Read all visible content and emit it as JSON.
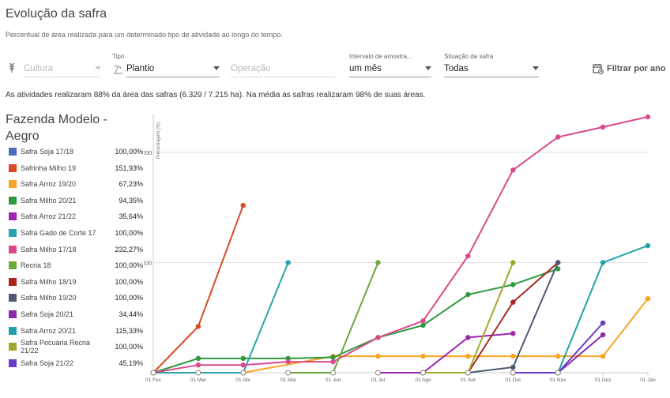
{
  "header": {
    "title": "Evolução da safra",
    "subtitle": "Percentual de área realizada para um determinado tipo de atividade ao longo do tempo."
  },
  "filters": {
    "cultura": {
      "placeholder": "Cultura"
    },
    "tipo": {
      "label": "Tipo",
      "value": "Plantio"
    },
    "operacao": {
      "placeholder": "Operação"
    },
    "intervalo": {
      "label": "Intervalo de amostra...",
      "value": "um mês"
    },
    "situacao": {
      "label": "Situação da safra",
      "value": "Todas"
    },
    "filter_button": "Filtrar por ano"
  },
  "summary": "As atividades realizaram 88% da área das safras (6.329 / 7.215 ha). Na média as safras realizaram 98% de suas áreas.",
  "farm": {
    "name": "Fazenda Modelo - Aegro"
  },
  "chart_data": {
    "type": "line",
    "ylabel": "Porcentagem (%)",
    "yticks": [
      100,
      200
    ],
    "ylim": [
      0,
      232.27
    ],
    "categories": [
      "01 Fev",
      "01 Mar",
      "01 Abr",
      "01 Mai",
      "01 Jun",
      "01 Jul",
      "01 Ago",
      "01 Set",
      "01 Out",
      "01 Nov",
      "01 Dez",
      "01 Jan"
    ],
    "series": [
      {
        "name": "Safra Soja 17/18",
        "total": "100,00%",
        "color": "#4a6fbf",
        "points": []
      },
      {
        "name": "Safrinha Milho 19",
        "total": "151,93%",
        "color": "#d84a2a",
        "points": [
          [
            0,
            0
          ],
          [
            1,
            42
          ],
          [
            2,
            151.93
          ]
        ]
      },
      {
        "name": "Safra Arroz 19/20",
        "total": "67,23%",
        "color": "#f5a623",
        "points": [
          [
            2,
            0
          ],
          [
            4,
            15
          ],
          [
            5,
            15
          ],
          [
            6,
            15
          ],
          [
            7,
            15
          ],
          [
            8,
            15
          ],
          [
            9,
            15
          ],
          [
            10,
            15
          ],
          [
            11,
            67.23
          ]
        ]
      },
      {
        "name": "Safra Milho 20/21",
        "total": "94,35%",
        "color": "#2e9a3c",
        "points": [
          [
            0,
            0
          ],
          [
            1,
            13
          ],
          [
            2,
            13
          ],
          [
            3,
            13
          ],
          [
            4,
            14
          ],
          [
            5,
            32
          ],
          [
            6,
            43
          ],
          [
            7,
            71
          ],
          [
            8,
            80
          ],
          [
            9,
            94.35
          ]
        ]
      },
      {
        "name": "Safra Arroz 21/22",
        "total": "35,64%",
        "color": "#9c27b0",
        "points": [
          [
            5,
            0
          ],
          [
            6,
            0
          ],
          [
            7,
            32
          ],
          [
            8,
            35.64
          ]
        ]
      },
      {
        "name": "Safra Gado de Corte 17",
        "total": "100,00%",
        "color": "#2aa3ad",
        "points": [
          [
            0,
            0
          ],
          [
            1,
            0
          ],
          [
            2,
            0
          ],
          [
            3,
            100
          ]
        ]
      },
      {
        "name": "Safra Milho 17/18",
        "total": "232,27%",
        "color": "#d94a8c",
        "points": [
          [
            0,
            0
          ],
          [
            1,
            7
          ],
          [
            2,
            7
          ],
          [
            3,
            10
          ],
          [
            4,
            10
          ],
          [
            5,
            32
          ],
          [
            6,
            47
          ],
          [
            7,
            106
          ],
          [
            8,
            184
          ],
          [
            9,
            214
          ],
          [
            10,
            223
          ],
          [
            11,
            232.27
          ]
        ]
      },
      {
        "name": "Recria 18",
        "total": "100,00%",
        "color": "#6aa83a",
        "points": [
          [
            3,
            0
          ],
          [
            4,
            0
          ],
          [
            5,
            100
          ]
        ]
      },
      {
        "name": "Safra Milho 18/19",
        "total": "100,00%",
        "color": "#a8281e",
        "points": [
          [
            6,
            0
          ],
          [
            7,
            0
          ],
          [
            8,
            64
          ],
          [
            9,
            100
          ]
        ]
      },
      {
        "name": "Safra Milho 19/20",
        "total": "100,00%",
        "color": "#4e5a72",
        "points": [
          [
            7,
            0
          ],
          [
            8,
            5
          ],
          [
            9,
            100
          ]
        ]
      },
      {
        "name": "Safra Soja 20/21",
        "total": "34,44%",
        "color": "#8a2aa8",
        "points": [
          [
            8,
            0
          ],
          [
            9,
            0
          ],
          [
            10,
            34.44
          ]
        ]
      },
      {
        "name": "Safra Arroz 20/21",
        "total": "115,33%",
        "color": "#1fa3a8",
        "points": [
          [
            8,
            0
          ],
          [
            9,
            0
          ],
          [
            10,
            100
          ],
          [
            11,
            115.33
          ]
        ]
      },
      {
        "name": "Safra Pecuária Recria 21/22",
        "total": "100,00%",
        "color": "#a3a82a",
        "points": [
          [
            6,
            0
          ],
          [
            7,
            0
          ],
          [
            8,
            100
          ]
        ]
      },
      {
        "name": "Safra Soja 21/22",
        "total": "45,19%",
        "color": "#6a3bc8",
        "points": [
          [
            8,
            0
          ],
          [
            9,
            0
          ],
          [
            10,
            45.19
          ]
        ]
      }
    ]
  }
}
